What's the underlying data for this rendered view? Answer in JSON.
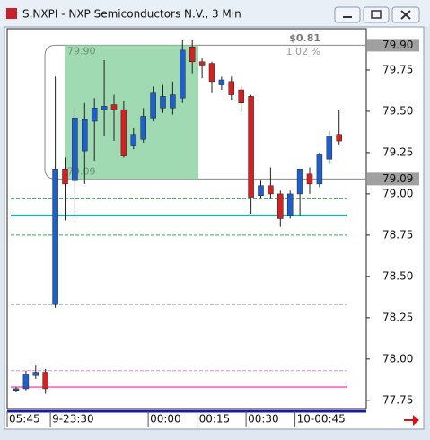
{
  "window": {
    "title": "S.NXPI - NXP Semiconductors N.V., 3 Min"
  },
  "chart_data": {
    "type": "candlestick",
    "categories": [
      "05:45",
      null,
      null,
      null,
      "9-23:30",
      null,
      null,
      null,
      null,
      null,
      null,
      null,
      null,
      null,
      "00:00",
      null,
      null,
      null,
      null,
      "00:15",
      null,
      null,
      null,
      null,
      "00:30",
      null,
      null,
      null,
      null,
      "10-00:45",
      null,
      null,
      null,
      null
    ],
    "open": [
      77.81,
      77.82,
      77.9,
      77.92,
      78.33,
      79.15,
      79.08,
      79.26,
      79.44,
      79.51,
      79.54,
      79.51,
      79.29,
      79.33,
      79.46,
      79.52,
      79.52,
      79.58,
      79.89,
      79.8,
      79.79,
      79.66,
      79.68,
      79.63,
      79.59,
      78.99,
      79.05,
      79.0,
      78.87,
      79.0,
      79.12,
      79.06,
      79.21,
      79.36
    ],
    "high": [
      77.83,
      77.93,
      77.96,
      77.94,
      79.71,
      79.22,
      79.52,
      79.55,
      79.58,
      79.81,
      79.6,
      79.56,
      79.4,
      79.52,
      79.65,
      79.66,
      79.68,
      79.93,
      79.93,
      79.82,
      79.8,
      79.71,
      79.71,
      79.65,
      79.6,
      79.08,
      79.16,
      79.02,
      79.02,
      79.15,
      79.16,
      79.25,
      79.38,
      79.51
    ],
    "low": [
      77.8,
      77.81,
      77.88,
      77.79,
      78.31,
      78.84,
      78.86,
      79.06,
      79.2,
      79.35,
      79.32,
      79.22,
      79.27,
      79.31,
      79.44,
      79.49,
      79.48,
      79.55,
      79.73,
      79.7,
      79.61,
      79.63,
      79.57,
      79.5,
      78.88,
      78.97,
      78.97,
      78.8,
      78.85,
      78.87,
      79.0,
      79.04,
      79.18,
      79.3
    ],
    "close": [
      77.82,
      77.91,
      77.92,
      77.82,
      79.15,
      79.06,
      79.46,
      79.45,
      79.52,
      79.53,
      79.51,
      79.23,
      79.36,
      79.47,
      79.61,
      79.59,
      79.6,
      79.87,
      79.8,
      79.78,
      79.68,
      79.69,
      79.6,
      79.55,
      78.98,
      79.05,
      79.0,
      78.85,
      79.0,
      79.15,
      79.06,
      79.24,
      79.35,
      79.32
    ],
    "up_color": "#1f5fcc",
    "down_color": "#d42222",
    "ylim": [
      77.7,
      80.0
    ],
    "yticks": [
      77.75,
      {
        "value": 78,
        "label": "78.00"
      },
      78.25,
      {
        "value": 78.5,
        "label": "78.50"
      },
      78.75,
      {
        "value": 79,
        "label": "79.00"
      },
      79.25,
      {
        "value": 79.5,
        "label": "79.50"
      },
      79.75
    ],
    "price_tags": [
      {
        "value": 79.9,
        "label": "79.90"
      },
      {
        "value": 79.09,
        "label": "79.09"
      }
    ],
    "levels": [
      {
        "value": 78.97,
        "color": "#2fb24a",
        "dash": true
      },
      {
        "value": 78.87,
        "color": "#17b3b3",
        "dash": false
      },
      {
        "value": 78.75,
        "color": "#2fb24a",
        "dash": true
      },
      {
        "value": 78.33,
        "color": "#999999",
        "dash": true
      },
      {
        "value": 77.93,
        "color": "#e58acb",
        "dash": true
      },
      {
        "value": 77.83,
        "color": "#f080c8",
        "dash": false
      }
    ],
    "measure": {
      "top": {
        "value": 79.9,
        "label": "79.90"
      },
      "bottom": {
        "value": 79.09,
        "label": "79.09"
      },
      "change": "$0.81",
      "percent": "1.02 %",
      "color": "#8fd4a6"
    }
  }
}
